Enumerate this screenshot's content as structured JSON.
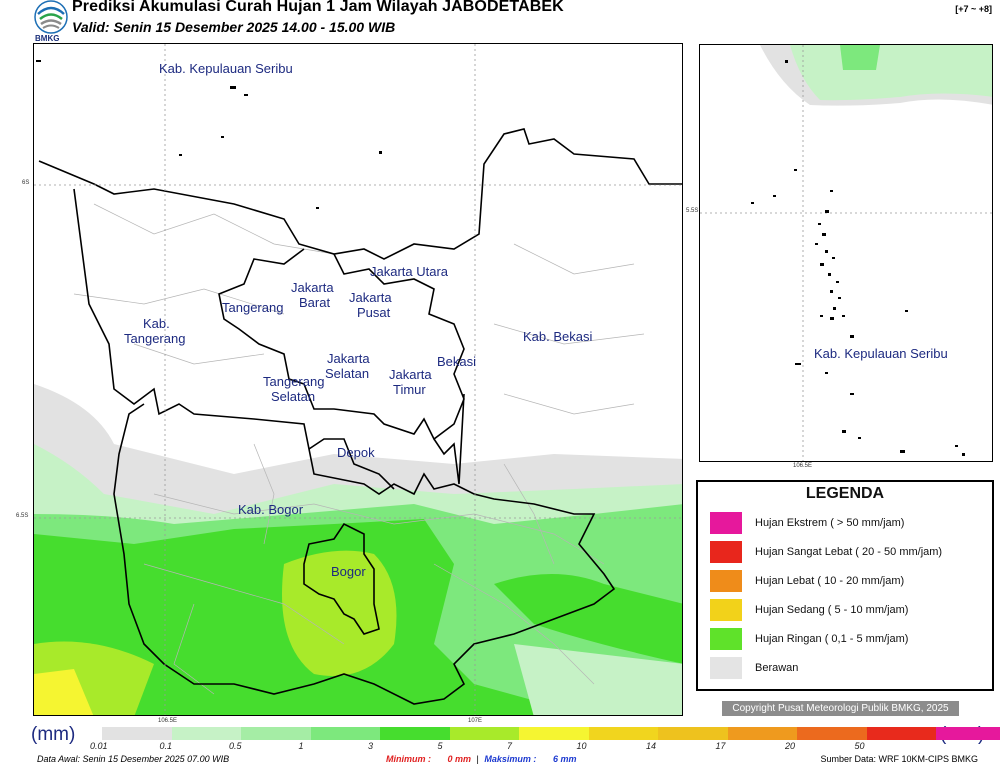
{
  "header": {
    "title": "Prediksi Akumulasi Curah Hujan 1 Jam Wilayah JABODETABEK",
    "valid": "Valid: Senin 15 Desember 2025 14.00 - 15.00 WIB",
    "range": "[+7 ~ +8]",
    "logo_text": "BMKG"
  },
  "main_map": {
    "lat_ticks": [
      "6S",
      "6.5S"
    ],
    "lon_ticks": [
      "106.5E",
      "107E"
    ],
    "labels": {
      "kep_seribu": "Kab. Kepulauan Seribu",
      "jakarta_utara": "Jakarta Utara",
      "jakarta_barat_1": "Jakarta",
      "jakarta_barat_2": "Barat",
      "jakarta_pusat_1": "Jakarta",
      "jakarta_pusat_2": "Pusat",
      "tangerang": "Tangerang",
      "kab_tangerang_1": "Kab.",
      "kab_tangerang_2": "Tangerang",
      "jakarta_selatan_1": "Jakarta",
      "jakarta_selatan_2": "Selatan",
      "jakarta_timur_1": "Jakarta",
      "jakarta_timur_2": "Timur",
      "bekasi": "Bekasi",
      "kab_bekasi": "Kab. Bekasi",
      "tangsel_1": "Tangerang",
      "tangsel_2": "Selatan",
      "depok": "Depok",
      "kab_bogor": "Kab. Bogor",
      "bogor": "Bogor"
    }
  },
  "inset_map": {
    "lat_tick": "5.5S",
    "lon_tick": "106.5E",
    "label": "Kab. Kepulauan Seribu"
  },
  "legend": {
    "title": "LEGENDA",
    "items": [
      {
        "label": "Hujan Ekstrem ( > 50 mm/jam)",
        "color": "#e6189c"
      },
      {
        "label": "Hujan Sangat Lebat ( 20 - 50 mm/jam)",
        "color": "#e8261c"
      },
      {
        "label": "Hujan Lebat ( 10 - 20 mm/jam)",
        "color": "#ef8c1a"
      },
      {
        "label": "Hujan Sedang ( 5 - 10 mm/jam)",
        "color": "#f2d21a"
      },
      {
        "label": "Hujan Ringan ( 0,1 - 5 mm/jam)",
        "color": "#5fe22a"
      },
      {
        "label": "Berawan",
        "color": "#e4e4e4"
      }
    ]
  },
  "copyright": "Copyright Pusat Meteorologi Publik BMKG, 2025",
  "colorbar": {
    "unit_left": "(mm)",
    "unit_right": "(mm)",
    "labels": [
      "0.01",
      "0.1",
      "0.5",
      "1",
      "3",
      "5",
      "7",
      "10",
      "14",
      "17",
      "20",
      "50"
    ],
    "colors": [
      "#e2e2e2",
      "#c6f2c6",
      "#a5eda5",
      "#7de87d",
      "#46dd2e",
      "#a8ea2a",
      "#f5f531",
      "#f1d51e",
      "#eec21e",
      "#ef9a1e",
      "#ec6a1e",
      "#e82a1c",
      "#e6189c"
    ]
  },
  "footer": {
    "left": "Data Awal: Senin 15 Desember 2025 07.00 WIB",
    "min_label": "Minimum :",
    "min_value": "0 mm",
    "sep": "|",
    "max_label": "Maksimum :",
    "max_value": "6 mm",
    "right": "Sumber Data: WRF 10KM-CIPS BMKG"
  }
}
